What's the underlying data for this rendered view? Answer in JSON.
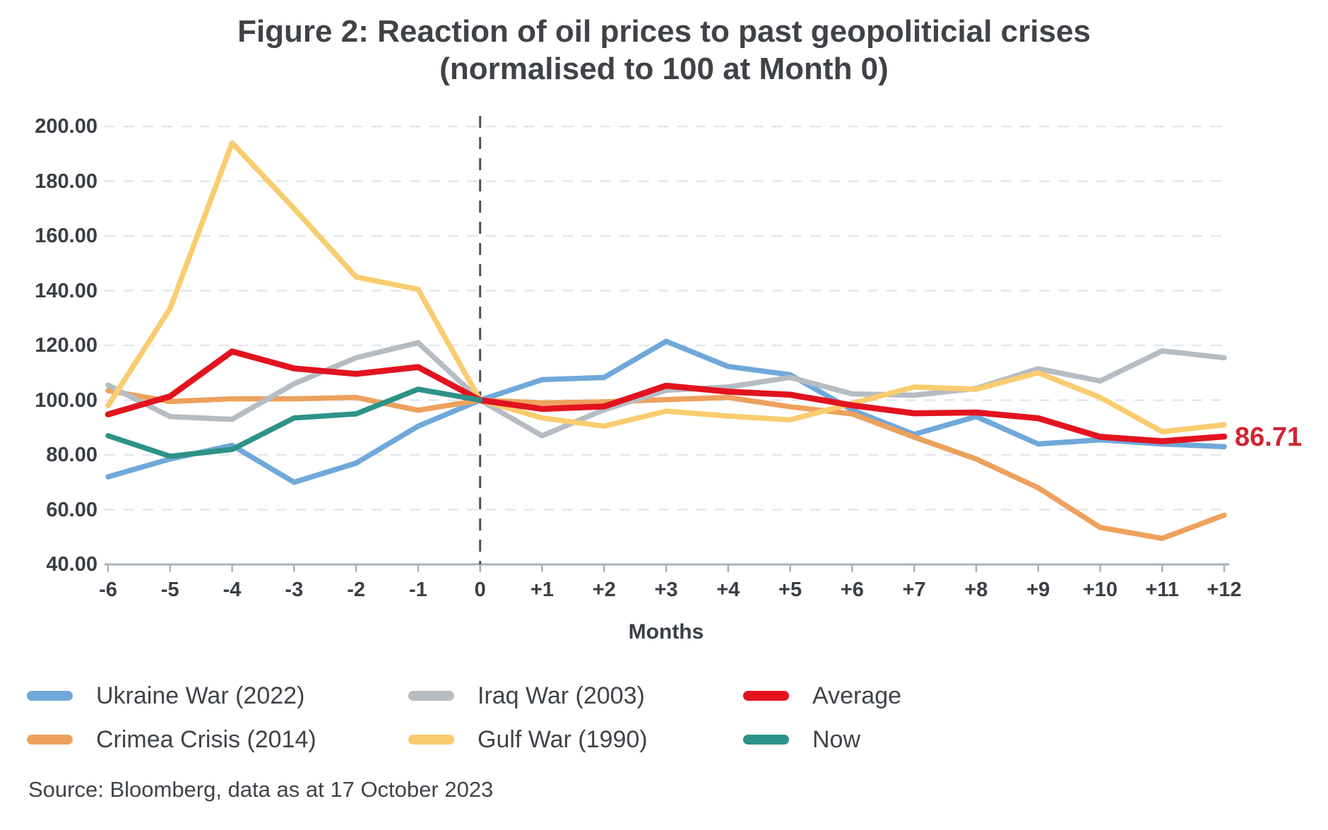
{
  "title": {
    "line1": "Figure 2: Reaction of oil prices to past geopoliticial crises",
    "line2": "(normalised to 100 at Month 0)"
  },
  "chart_data": {
    "type": "line",
    "title": "Figure 2: Reaction of oil prices to past geopoliticial crises (normalised to 100 at Month 0)",
    "xlabel": "Months",
    "ylabel": "",
    "x": [
      -6,
      -5,
      -4,
      -3,
      -2,
      -1,
      0,
      1,
      2,
      3,
      4,
      5,
      6,
      7,
      8,
      9,
      10,
      11,
      12
    ],
    "x_tick_labels": [
      "-6",
      "-5",
      "-4",
      "-3",
      "-2",
      "-1",
      "0",
      "+1",
      "+2",
      "+3",
      "+4",
      "+5",
      "+6",
      "+7",
      "+8",
      "+9",
      "+10",
      "+11",
      "+12"
    ],
    "ylim": [
      40,
      200
    ],
    "y_ticks": [
      40,
      60,
      80,
      100,
      120,
      140,
      160,
      180,
      200
    ],
    "grid": "horizontal-dashed",
    "event_line_at_month": 0,
    "legend_position": "bottom",
    "series": [
      {
        "name": "Ukraine War (2022)",
        "color": "#70a8da",
        "values": [
          72,
          78.5,
          83.5,
          70,
          77,
          90.5,
          100,
          107.5,
          108.3,
          121.5,
          112.3,
          109.3,
          96.4,
          87.5,
          94,
          84,
          85.5,
          84,
          83
        ]
      },
      {
        "name": "Crimea Crisis (2014)",
        "color": "#eda15d",
        "values": [
          103.5,
          99.5,
          100.5,
          100.5,
          101,
          96.3,
          100,
          99,
          99.4,
          100.2,
          101,
          97.6,
          95,
          86.5,
          78.5,
          68,
          53.5,
          49.5,
          58
        ]
      },
      {
        "name": "Iraq War (2003)",
        "color": "#b5bcc3",
        "values": [
          105.5,
          94,
          93,
          106,
          115.5,
          121,
          100,
          87,
          96.5,
          103.6,
          104.8,
          108.3,
          102.3,
          101.8,
          104.3,
          111.5,
          107,
          118,
          115.5
        ]
      },
      {
        "name": "Gulf War (1990)",
        "color": "#f9cc6f",
        "values": [
          98,
          133.5,
          194,
          170,
          145,
          140.5,
          100,
          93.5,
          90.5,
          96,
          94.2,
          92.8,
          98.8,
          104.8,
          104,
          110,
          101,
          88.5,
          91
        ]
      },
      {
        "name": "Average",
        "color": "#e2131f",
        "values": [
          94.8,
          101.4,
          117.8,
          111.6,
          109.6,
          112.1,
          100,
          96.8,
          97.7,
          105.3,
          103.1,
          102,
          98.1,
          95.2,
          95.5,
          93.4,
          86.6,
          85,
          86.71
        ]
      },
      {
        "name": "Now",
        "color": "#2d9287",
        "values": [
          87,
          79.5,
          82,
          93.5,
          95,
          104,
          100,
          null,
          null,
          null,
          null,
          null,
          null,
          null,
          null,
          null,
          null,
          null,
          null
        ]
      }
    ],
    "annotations": [
      {
        "text": "86.71",
        "series": "Average",
        "month": 12,
        "color": "#d22431"
      }
    ]
  },
  "axis": {
    "months_label": "Months"
  },
  "legend": {
    "items": [
      {
        "label": "Ukraine War (2022)",
        "color": "#70a8da"
      },
      {
        "label": "Crimea Crisis (2014)",
        "color": "#eda15d"
      },
      {
        "label": "Iraq War (2003)",
        "color": "#b5bcc3"
      },
      {
        "label": "Gulf War (1990)",
        "color": "#f9cc6f"
      },
      {
        "label": "Average",
        "color": "#e2131f"
      },
      {
        "label": "Now",
        "color": "#2d9287"
      }
    ]
  },
  "annotation_label": "86.71",
  "source": "Source: Bloomberg, data as at 17 October 2023",
  "colors": {
    "gridline": "#e4e7ea",
    "axis_line": "#a8b2ba",
    "event_dash_line": "#4f4f4f",
    "text": "#3f4347",
    "annotation_red": "#d22431"
  }
}
